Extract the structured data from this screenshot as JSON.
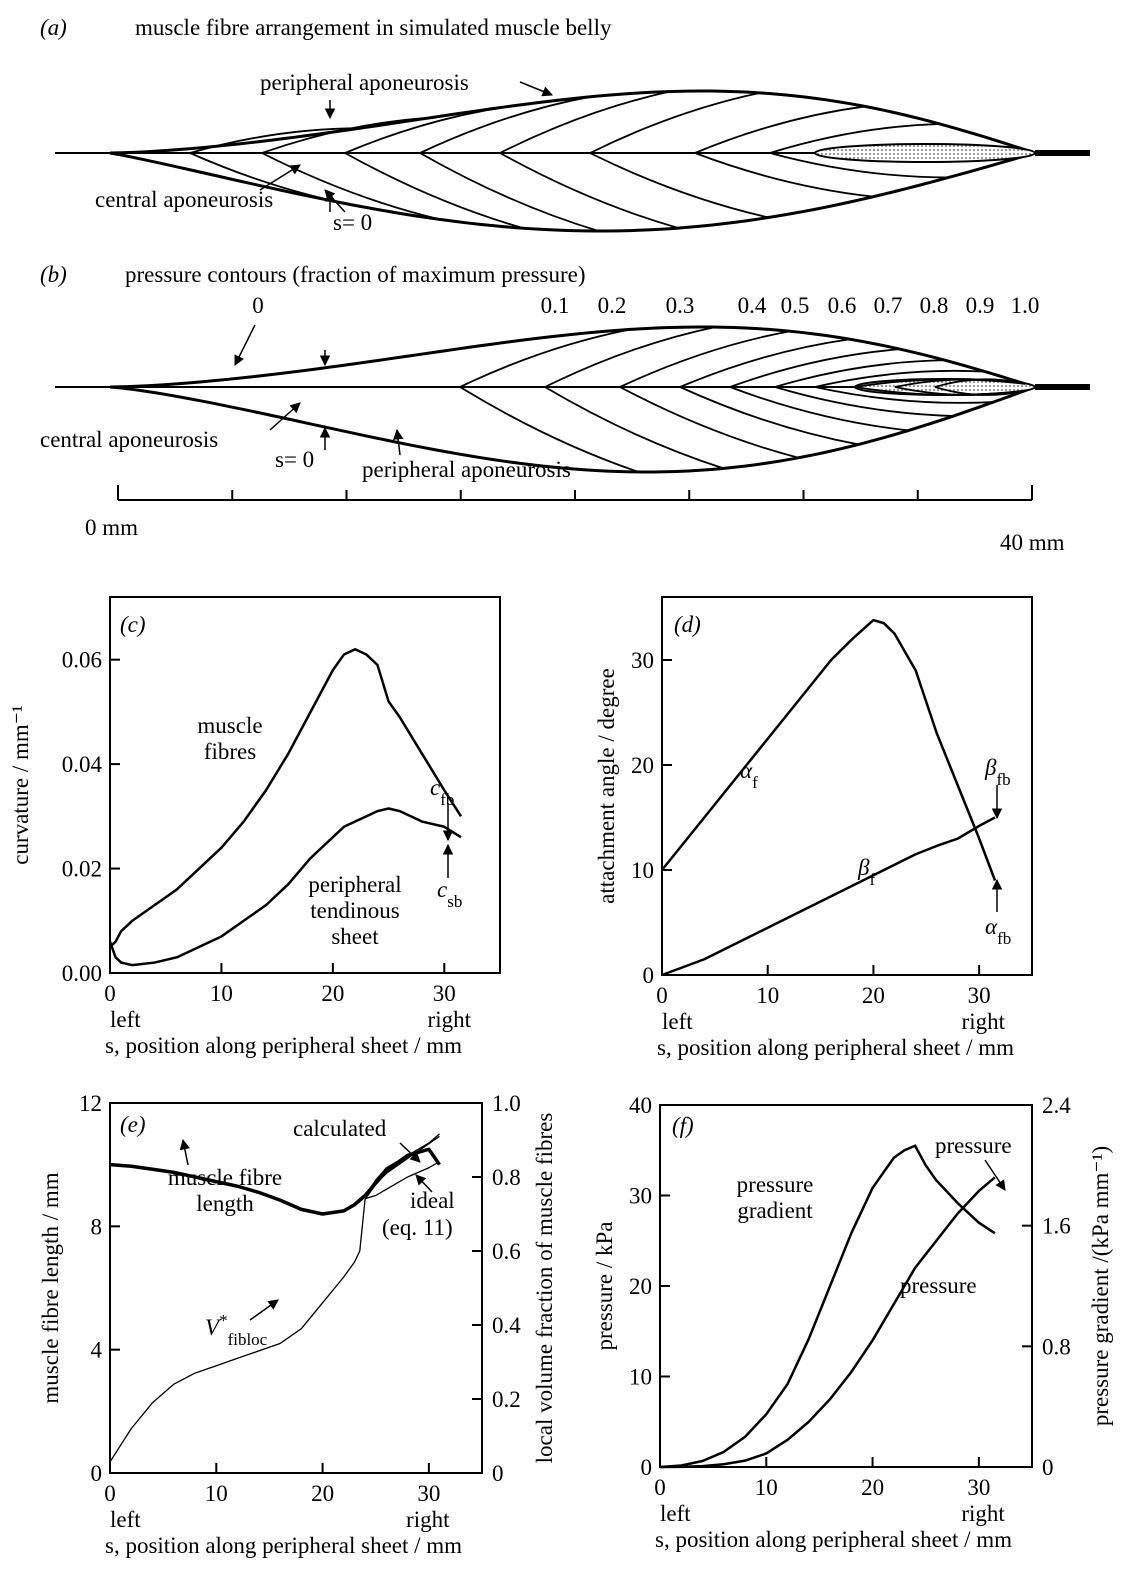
{
  "panel_a": {
    "label": "(a)",
    "title": "muscle fibre arrangement in simulated muscle belly",
    "peripheral": "peripheral aponeurosis",
    "central": "central aponeurosis",
    "origin": "s= 0"
  },
  "panel_b": {
    "label": "(b)",
    "title": "pressure contours (fraction of maximum pressure)",
    "contours": [
      "0",
      "0.1",
      "0.2",
      "0.3",
      "0.4",
      "0.5",
      "0.6",
      "0.7",
      "0.8",
      "0.9",
      "1.0"
    ],
    "central": "central aponeurosis",
    "origin": "s= 0",
    "peripheral": "peripheral aponeurosis"
  },
  "scale_bar": {
    "start": "0 mm",
    "end": "40 mm"
  },
  "chart_data": [
    {
      "type": "line",
      "title": "(c)",
      "xlabel": "s, position along peripheral sheet / mm",
      "ylabel": "curvature / mm⁻¹",
      "xlim": [
        0,
        35
      ],
      "xticks": [
        0,
        10,
        20,
        30
      ],
      "ylim": [
        0,
        0.072
      ],
      "yticks": [
        {
          "value": 0,
          "label": "0.00"
        },
        0.02,
        0.04,
        0.06
      ],
      "end_labels": [
        "left",
        "right"
      ],
      "x": [
        0,
        0.5,
        1,
        2,
        4,
        6,
        8,
        10,
        12,
        14,
        16,
        18,
        20,
        21,
        22,
        23,
        24,
        25,
        26,
        28,
        30,
        31.5
      ],
      "series": [
        {
          "name": "muscle fibres",
          "color": "#000000",
          "values": [
            0.005,
            0.006,
            0.008,
            0.01,
            0.013,
            0.016,
            0.02,
            0.024,
            0.029,
            0.035,
            0.042,
            0.05,
            0.058,
            0.061,
            0.062,
            0.061,
            0.059,
            0.052,
            0.049,
            0.042,
            0.035,
            0.03
          ]
        },
        {
          "name": "peripheral tendinous sheet",
          "color": "#000000",
          "values": [
            0.006,
            0.003,
            0.002,
            0.0015,
            0.002,
            0.003,
            0.005,
            0.007,
            0.01,
            0.013,
            0.017,
            0.022,
            0.026,
            0.028,
            0.029,
            0.03,
            0.031,
            0.0315,
            0.031,
            0.029,
            0.028,
            0.026
          ]
        }
      ],
      "annotations": [
        "cfb",
        "csb"
      ]
    },
    {
      "type": "line",
      "title": "(d)",
      "xlabel": "s, position along peripheral sheet / mm",
      "ylabel": "attachment angle / degree",
      "xlim": [
        0,
        35
      ],
      "xticks": [
        0,
        10,
        20,
        30
      ],
      "ylim": [
        0,
        36
      ],
      "yticks": [
        0,
        10,
        20,
        30
      ],
      "end_labels": [
        "left",
        "right"
      ],
      "x": [
        0,
        4,
        8,
        12,
        16,
        18,
        20,
        21,
        22,
        24,
        26,
        28,
        30,
        31.5
      ],
      "series": [
        {
          "name": "αf",
          "color": "#000000",
          "values": [
            10,
            15,
            20,
            25,
            30,
            32,
            33.8,
            33.5,
            32.5,
            29,
            23,
            18,
            13,
            9
          ]
        },
        {
          "name": "βf",
          "color": "#000000",
          "values": [
            0,
            1.5,
            3.5,
            5.5,
            7.5,
            8.5,
            9.5,
            10,
            10.5,
            11.5,
            12.3,
            13,
            14.2,
            15
          ]
        }
      ],
      "annotations": [
        "βfb",
        "αfb"
      ]
    },
    {
      "type": "line",
      "title": "(e)",
      "xlabel": "s, position along peripheral sheet / mm",
      "ylabel": "muscle fibre length / mm",
      "y2label": "local volume fraction of muscle fibres",
      "xlim": [
        0,
        35
      ],
      "xticks": [
        0,
        10,
        20,
        30
      ],
      "ylim": [
        0,
        12
      ],
      "yticks": [
        0,
        4,
        8,
        12
      ],
      "y2lim": [
        0,
        1
      ],
      "y2ticks": [
        0,
        0.2,
        0.4,
        0.6,
        0.8,
        {
          "value": 1,
          "label": "1.0"
        }
      ],
      "end_labels": [
        "left",
        "right"
      ],
      "x": [
        0,
        2,
        4,
        6,
        8,
        10,
        12,
        14,
        16,
        18,
        20,
        22,
        23,
        23.5,
        24,
        25,
        26,
        28,
        30,
        31
      ],
      "series": [
        {
          "name": "muscle fibre length",
          "color": "#000000",
          "values": [
            10,
            9.95,
            9.85,
            9.75,
            9.6,
            9.45,
            9.3,
            9.1,
            8.85,
            8.55,
            8.4,
            8.5,
            8.7,
            8.85,
            9.0,
            9.4,
            9.8,
            10.3,
            10.5,
            10.0
          ]
        },
        {
          "name": "calculated",
          "color": "#000000",
          "values": [
            null,
            null,
            null,
            null,
            null,
            null,
            null,
            null,
            null,
            null,
            null,
            null,
            null,
            null,
            9.0,
            9.5,
            9.9,
            10.3,
            10.7,
            11.0
          ]
        },
        {
          "name": "ideal",
          "color": "#000000",
          "values": [
            null,
            null,
            null,
            null,
            null,
            null,
            null,
            null,
            null,
            null,
            null,
            null,
            null,
            null,
            8.9,
            9.0,
            9.2,
            9.6,
            9.9,
            10.1
          ]
        },
        {
          "name": "V*fibloc",
          "color": "#000000",
          "axis": "y2",
          "values": [
            0.03,
            0.12,
            0.19,
            0.24,
            0.27,
            0.29,
            0.31,
            0.33,
            0.35,
            0.39,
            0.46,
            0.53,
            0.57,
            0.6,
            0.74,
            0.78,
            0.81,
            0.85,
            0.89,
            0.91
          ]
        }
      ],
      "annotations": [
        "(eq. 11)"
      ]
    },
    {
      "type": "line",
      "title": "(f)",
      "xlabel": "s, position along peripheral sheet / mm",
      "ylabel": "pressure / kPa",
      "y2label": "pressure gradient  /(kPa mm⁻¹)",
      "xlim": [
        0,
        35
      ],
      "xticks": [
        0,
        10,
        20,
        30
      ],
      "ylim": [
        0,
        40
      ],
      "yticks": [
        0,
        10,
        20,
        30,
        40
      ],
      "y2lim": [
        0,
        2.4
      ],
      "y2ticks": [
        0,
        0.8,
        1.6,
        2.4
      ],
      "end_labels": [
        "left",
        "right"
      ],
      "x": [
        0,
        2,
        4,
        6,
        8,
        10,
        12,
        14,
        16,
        18,
        20,
        22,
        23,
        24,
        25,
        26,
        28,
        30,
        31.5
      ],
      "series": [
        {
          "name": "pressure gradient",
          "color": "#000000",
          "axis": "y2",
          "values": [
            0,
            0.01,
            0.04,
            0.1,
            0.2,
            0.35,
            0.55,
            0.85,
            1.2,
            1.55,
            1.85,
            2.05,
            2.1,
            2.13,
            2.0,
            1.9,
            1.75,
            1.62,
            1.55
          ]
        },
        {
          "name": "pressure",
          "color": "#000000",
          "values": [
            0,
            0.02,
            0.1,
            0.3,
            0.7,
            1.5,
            3,
            5,
            7.5,
            10.5,
            14,
            18,
            20,
            22,
            23.5,
            25,
            28,
            30.5,
            32
          ]
        }
      ],
      "annotations": [
        "pressure"
      ]
    }
  ]
}
